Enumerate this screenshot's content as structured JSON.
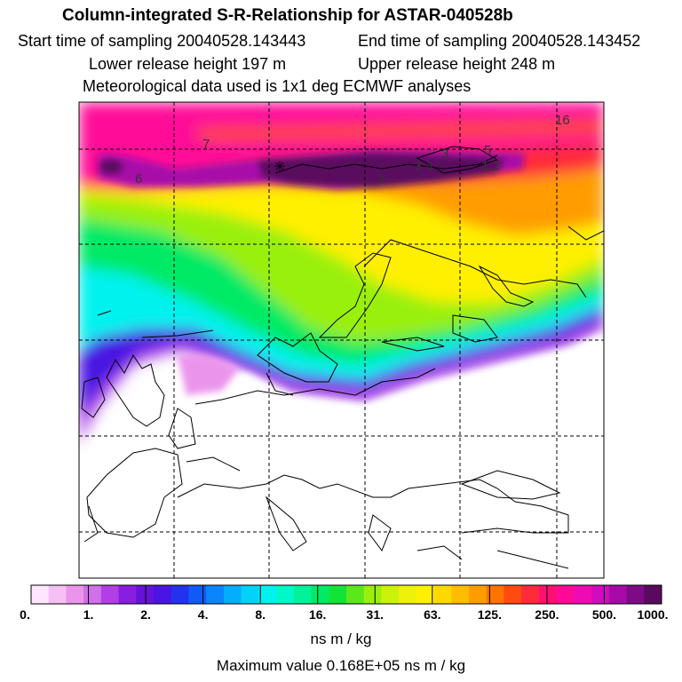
{
  "header": {
    "title": "Column-integrated S-R-Relationship for ASTAR-040528b",
    "start_label": "Start time of sampling 20040528.143443",
    "end_label": "End time of sampling 20040528.143452",
    "lower_label": "Lower release height  197 m",
    "upper_label": "Upper release height  248 m",
    "met_label": "Meteorological data used is 1x1 deg ECMWF analyses"
  },
  "map": {
    "contour_labels": [
      "16",
      "7",
      "6",
      "3",
      "3 4",
      "3",
      "5",
      "1 2"
    ]
  },
  "colorbar": {
    "tick_labels": [
      "0.",
      "1.",
      "2.",
      "4.",
      "8.",
      "16.",
      "31.",
      "63.",
      "125.",
      "250.",
      "500.",
      "1000."
    ],
    "colors": [
      "#ffe6ff",
      "#f7c0f5",
      "#eb94ec",
      "#d070ea",
      "#b23fe6",
      "#8a1ee0",
      "#6612d8",
      "#4a14e2",
      "#2432ee",
      "#105af8",
      "#0a86fa",
      "#05aefc",
      "#00d2fa",
      "#00f2ee",
      "#00f8c8",
      "#00f29a",
      "#00ea66",
      "#12e436",
      "#5ae81a",
      "#9af00c",
      "#ccf20a",
      "#eef20a",
      "#fff000",
      "#ffd800",
      "#ffbc00",
      "#ff9c00",
      "#ff7400",
      "#ff4a10",
      "#ff2a3a",
      "#ff1070",
      "#ff0a98",
      "#f00ab4",
      "#d20ac0",
      "#a80aaa",
      "#7e0a86",
      "#5a0a5e"
    ],
    "unit": "ns m / kg"
  },
  "footer": {
    "max_value": "Maximum value  0.168E+05 ns m / kg"
  }
}
